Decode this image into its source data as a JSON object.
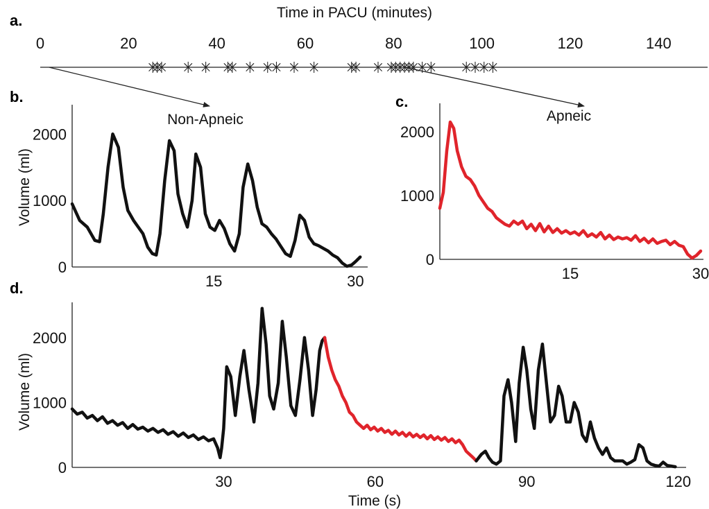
{
  "colors": {
    "normal": "#111111",
    "apnea": "#e0242b",
    "axis": "#222222"
  },
  "chart_data": [
    {
      "id": "a",
      "panel_label": "a.",
      "type": "scatter",
      "title": "Time in PACU (minutes)",
      "xlim": [
        0,
        150
      ],
      "xticks": [
        0,
        20,
        40,
        60,
        80,
        100,
        120,
        140
      ],
      "marker": "*",
      "events_x": [
        25.5,
        26.5,
        27.5,
        33.5,
        37.5,
        42.5,
        43.5,
        47.5,
        51.5,
        53.5,
        57.5,
        62,
        70.5,
        71.5,
        76.5,
        79.5,
        80.5,
        81.5,
        82.5,
        83.5,
        84.5,
        86.5,
        88.5,
        96.5,
        98.5,
        100.5,
        102.5
      ],
      "callouts": [
        {
          "from_x": 2,
          "label": "Non-Apneic"
        },
        {
          "from_x": 82.5,
          "label": "Apneic"
        }
      ]
    },
    {
      "id": "b",
      "panel_label": "b.",
      "type": "line",
      "title": "Non-Apneic",
      "xlabel": "",
      "ylabel": "Volume (ml)",
      "xlim": [
        0,
        31
      ],
      "ylim": [
        0,
        2400
      ],
      "xticks": [
        15,
        30
      ],
      "yticks": [
        0,
        1000,
        2000
      ],
      "series": [
        {
          "color": "normal",
          "x": [
            0,
            0.8,
            1.6,
            2.4,
            2.9,
            3.3,
            3.8,
            4.3,
            4.9,
            5.4,
            5.9,
            6.5,
            7,
            7.5,
            8,
            8.5,
            8.9,
            9.3,
            9.8,
            10.3,
            10.8,
            11.2,
            11.7,
            12.2,
            12.7,
            13.1,
            13.6,
            14.1,
            14.6,
            15.1,
            15.6,
            16.1,
            16.7,
            17.2,
            17.7,
            18.1,
            18.6,
            19.1,
            19.6,
            20.1,
            20.6,
            21.1,
            21.6,
            22.1,
            22.6,
            23.1,
            23.6,
            24.1,
            24.6,
            25.1,
            25.6,
            26.1,
            26.6,
            27.1,
            27.6,
            28.1,
            28.6,
            29.1,
            29.6,
            30,
            30.5
          ],
          "y": [
            950,
            700,
            600,
            400,
            380,
            800,
            1500,
            2000,
            1800,
            1200,
            850,
            700,
            600,
            500,
            300,
            200,
            180,
            500,
            1300,
            1900,
            1750,
            1100,
            800,
            600,
            1000,
            1700,
            1500,
            800,
            600,
            550,
            700,
            580,
            350,
            240,
            500,
            1200,
            1550,
            1300,
            900,
            650,
            600,
            500,
            420,
            310,
            200,
            160,
            400,
            780,
            700,
            450,
            350,
            320,
            280,
            240,
            180,
            140,
            60,
            10,
            30,
            80,
            150
          ]
        }
      ]
    },
    {
      "id": "c",
      "panel_label": "c.",
      "type": "line",
      "title": "Apneic",
      "xlabel": "",
      "ylabel": "",
      "xlim": [
        0,
        30
      ],
      "ylim": [
        0,
        2400
      ],
      "xticks": [
        15,
        30
      ],
      "yticks": [
        0,
        1000,
        2000
      ],
      "series": [
        {
          "color": "apnea",
          "x": [
            0,
            0.4,
            0.8,
            1.2,
            1.6,
            2,
            2.5,
            3,
            3.5,
            4,
            4.5,
            5,
            5.5,
            6,
            6.5,
            7,
            7.5,
            8,
            8.5,
            9,
            9.5,
            10,
            10.5,
            11,
            11.5,
            12,
            12.5,
            13,
            13.5,
            14,
            14.5,
            15,
            15.5,
            16,
            16.5,
            17,
            17.5,
            18,
            18.5,
            19,
            19.5,
            20,
            20.5,
            21,
            21.5,
            22,
            22.5,
            23,
            23.5,
            24,
            24.5,
            25,
            25.5,
            26,
            26.5,
            27,
            27.5,
            28,
            28.5,
            29,
            29.5,
            30
          ],
          "y": [
            800,
            1050,
            1700,
            2150,
            2050,
            1700,
            1450,
            1300,
            1250,
            1150,
            1000,
            900,
            800,
            750,
            650,
            600,
            550,
            520,
            600,
            550,
            600,
            480,
            550,
            450,
            560,
            430,
            520,
            420,
            480,
            410,
            450,
            400,
            430,
            380,
            450,
            360,
            400,
            350,
            420,
            320,
            380,
            310,
            350,
            320,
            340,
            300,
            370,
            280,
            330,
            260,
            320,
            250,
            280,
            300,
            230,
            280,
            220,
            200,
            80,
            20,
            60,
            130
          ]
        }
      ]
    },
    {
      "id": "d",
      "panel_label": "d.",
      "type": "line",
      "title": "",
      "xlabel": "Time (s)",
      "ylabel": "Volume (ml)",
      "xlim": [
        0,
        121
      ],
      "ylim": [
        0,
        2500
      ],
      "xticks": [
        30,
        60,
        90,
        120
      ],
      "yticks": [
        0,
        1000,
        2000
      ],
      "series": [
        {
          "color": "normal",
          "x": [
            0,
            1,
            2,
            3,
            4,
            5,
            6,
            7,
            8,
            9,
            10,
            11,
            12,
            13,
            14,
            15,
            16,
            17,
            18,
            19,
            20,
            21,
            22,
            23,
            24,
            25,
            26,
            27,
            28,
            28.8,
            29.3,
            29.6,
            30,
            30.6,
            31.4,
            32.3,
            33.2,
            34,
            35,
            36,
            36.8,
            37.6,
            38.4,
            39.1,
            39.9,
            40.8,
            41.6,
            42.4,
            43.3,
            44.2,
            45.1,
            46,
            46.8,
            47.6,
            48.3,
            49,
            49.5,
            50
          ],
          "y": [
            900,
            820,
            850,
            760,
            800,
            720,
            780,
            680,
            720,
            650,
            690,
            600,
            660,
            590,
            620,
            560,
            600,
            540,
            580,
            510,
            550,
            480,
            530,
            460,
            500,
            430,
            470,
            410,
            440,
            300,
            150,
            300,
            600,
            1550,
            1400,
            800,
            1400,
            1800,
            1200,
            700,
            1300,
            2450,
            1900,
            1100,
            900,
            1300,
            2250,
            1700,
            950,
            800,
            1350,
            2000,
            1500,
            800,
            1200,
            1800,
            1950,
            2000
          ]
        },
        {
          "color": "apnea",
          "x": [
            50,
            50.7,
            51.4,
            52.1,
            52.8,
            53.5,
            54.2,
            54.9,
            55.6,
            56.3,
            57,
            57.7,
            58.4,
            59.1,
            59.8,
            60.5,
            61.2,
            61.9,
            62.6,
            63.3,
            64,
            64.7,
            65.4,
            66.1,
            66.8,
            67.5,
            68.2,
            68.9,
            69.6,
            70.3,
            71,
            71.7,
            72.4,
            73.1,
            73.8,
            74.5,
            75.2,
            75.9,
            76.6,
            77.3,
            78,
            78.7,
            79.4,
            80
          ],
          "y": [
            2000,
            1700,
            1500,
            1350,
            1250,
            1100,
            1000,
            850,
            800,
            700,
            650,
            600,
            650,
            580,
            620,
            560,
            600,
            540,
            570,
            510,
            560,
            500,
            540,
            480,
            530,
            470,
            510,
            460,
            500,
            440,
            490,
            430,
            470,
            420,
            460,
            400,
            440,
            380,
            420,
            350,
            250,
            200,
            150,
            100
          ]
        },
        {
          "color": "normal",
          "x": [
            80,
            81,
            81.8,
            82.5,
            83.2,
            84,
            84.8,
            85.5,
            86.3,
            87,
            87.8,
            88.5,
            89.3,
            90,
            90.8,
            91.5,
            92.3,
            93.1,
            93.9,
            94.7,
            95.5,
            96.3,
            97,
            97.8,
            98.6,
            99.4,
            100.2,
            101,
            101.8,
            102.6,
            103.4,
            104.2,
            105,
            105.8,
            106.6,
            107.4,
            108.2,
            109,
            109.8,
            110.6,
            111.4,
            112.2,
            113,
            113.8,
            114.6,
            115.4,
            116.2,
            117,
            117.8,
            118.6,
            119.4
          ],
          "y": [
            100,
            200,
            250,
            150,
            80,
            50,
            100,
            1100,
            1350,
            1000,
            400,
            1300,
            1850,
            1500,
            900,
            600,
            1500,
            1900,
            1300,
            700,
            800,
            1250,
            1100,
            700,
            700,
            1000,
            850,
            500,
            400,
            700,
            450,
            300,
            200,
            300,
            150,
            100,
            100,
            100,
            50,
            80,
            120,
            350,
            300,
            100,
            50,
            30,
            20,
            80,
            30,
            20,
            10
          ]
        }
      ]
    }
  ]
}
